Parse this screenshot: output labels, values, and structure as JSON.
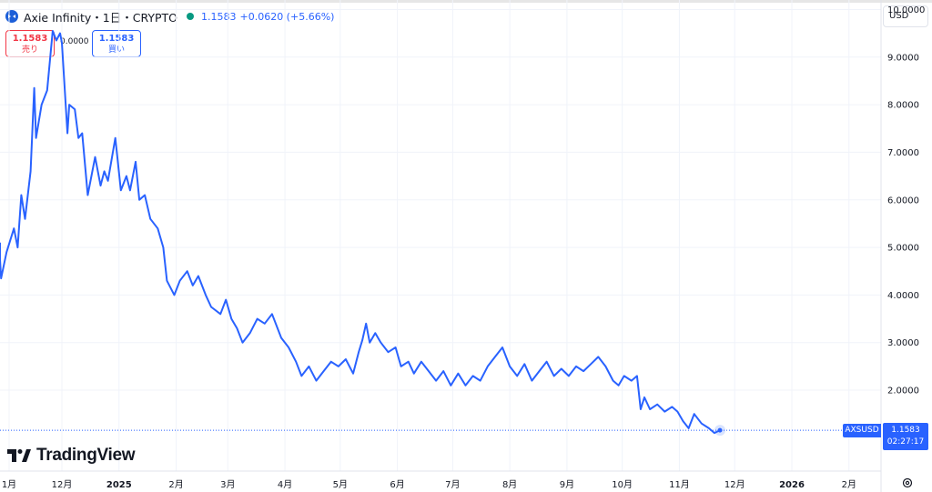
{
  "header": {
    "title": "Axie Infinity・1日・CRYPTO",
    "price": "1.1583",
    "change": "+0.0620 (+5.66%)",
    "logo_icon": "axie-infinity-icon"
  },
  "currency_selector": {
    "label": "USD"
  },
  "trade": {
    "sell_value": "1.1583",
    "sell_label": "売り",
    "spread": "0.0000",
    "buy_value": "1.1583",
    "buy_label": "買い"
  },
  "watermark": {
    "text": "TradingView"
  },
  "last_price": {
    "pair": "AXSUSD",
    "value": "1.1583",
    "countdown": "02:27:17"
  },
  "colors": {
    "line": "#2962ff",
    "sell": "#f23645",
    "buy": "#2962ff",
    "status": "#089981"
  },
  "chart_data": {
    "type": "line",
    "title": "",
    "xlabel": "",
    "ylabel": "",
    "ylim": [
      0.3,
      10.2
    ],
    "y_ticks": [
      "2.0000",
      "3.0000",
      "4.0000",
      "5.0000",
      "6.0000",
      "7.0000",
      "8.0000",
      "9.0000",
      "10.0000"
    ],
    "x_ticks": [
      {
        "label": "1月",
        "date": "2024-01-01"
      },
      {
        "label": "12月",
        "date": "2024-12-01"
      },
      {
        "label": "2025",
        "date": "2025-01-01"
      },
      {
        "label": "2月",
        "date": "2025-02-01"
      },
      {
        "label": "3月",
        "date": "2025-03-01"
      },
      {
        "label": "4月",
        "date": "2025-04-01"
      },
      {
        "label": "5月",
        "date": "2025-05-01"
      },
      {
        "label": "6月",
        "date": "2025-06-01"
      },
      {
        "label": "7月",
        "date": "2025-07-01"
      },
      {
        "label": "8月",
        "date": "2025-08-01"
      },
      {
        "label": "9月",
        "date": "2025-09-01"
      },
      {
        "label": "10月",
        "date": "2025-10-01"
      },
      {
        "label": "11月",
        "date": "2025-11-01"
      },
      {
        "label": "12月",
        "date": "2025-12-01"
      },
      {
        "label": "2026",
        "date": "2026-01-01"
      },
      {
        "label": "2月",
        "date": "2026-02-01"
      }
    ],
    "grid": true,
    "series": [
      {
        "values": [
          [
            "2024-10-23",
            5.1
          ],
          [
            "2024-10-25",
            4.75
          ],
          [
            "2024-10-29",
            4.35
          ],
          [
            "2024-11-01",
            4.9
          ],
          [
            "2024-11-05",
            5.4
          ],
          [
            "2024-11-07",
            5.0
          ],
          [
            "2024-11-09",
            6.1
          ],
          [
            "2024-11-11",
            5.6
          ],
          [
            "2024-11-14",
            6.6
          ],
          [
            "2024-11-16",
            8.35
          ],
          [
            "2024-11-17",
            7.3
          ],
          [
            "2024-11-20",
            8.0
          ],
          [
            "2024-11-23",
            8.3
          ],
          [
            "2024-11-26",
            9.55
          ],
          [
            "2024-11-28",
            9.35
          ],
          [
            "2024-11-30",
            9.5
          ],
          [
            "2024-12-01",
            9.3
          ],
          [
            "2024-12-04",
            7.4
          ],
          [
            "2024-12-05",
            8.0
          ],
          [
            "2024-12-08",
            7.9
          ],
          [
            "2024-12-10",
            7.3
          ],
          [
            "2024-12-12",
            7.4
          ],
          [
            "2024-12-15",
            6.1
          ],
          [
            "2024-12-19",
            6.9
          ],
          [
            "2024-12-22",
            6.3
          ],
          [
            "2024-12-24",
            6.6
          ],
          [
            "2024-12-26",
            6.4
          ],
          [
            "2024-12-30",
            7.3
          ],
          [
            "2025-01-02",
            6.2
          ],
          [
            "2025-01-05",
            6.5
          ],
          [
            "2025-01-07",
            6.2
          ],
          [
            "2025-01-10",
            6.8
          ],
          [
            "2025-01-12",
            6.0
          ],
          [
            "2025-01-15",
            6.1
          ],
          [
            "2025-01-18",
            5.6
          ],
          [
            "2025-01-22",
            5.4
          ],
          [
            "2025-01-25",
            5.0
          ],
          [
            "2025-01-27",
            4.3
          ],
          [
            "2025-01-31",
            4.0
          ],
          [
            "2025-02-03",
            4.3
          ],
          [
            "2025-02-07",
            4.5
          ],
          [
            "2025-02-10",
            4.2
          ],
          [
            "2025-02-13",
            4.4
          ],
          [
            "2025-02-17",
            4.0
          ],
          [
            "2025-02-20",
            3.75
          ],
          [
            "2025-02-25",
            3.6
          ],
          [
            "2025-02-28",
            3.9
          ],
          [
            "2025-03-03",
            3.5
          ],
          [
            "2025-03-06",
            3.3
          ],
          [
            "2025-03-09",
            3.0
          ],
          [
            "2025-03-13",
            3.2
          ],
          [
            "2025-03-17",
            3.5
          ],
          [
            "2025-03-21",
            3.4
          ],
          [
            "2025-03-25",
            3.6
          ],
          [
            "2025-03-30",
            3.1
          ],
          [
            "2025-04-03",
            2.9
          ],
          [
            "2025-04-07",
            2.6
          ],
          [
            "2025-04-10",
            2.3
          ],
          [
            "2025-04-14",
            2.5
          ],
          [
            "2025-04-18",
            2.2
          ],
          [
            "2025-04-22",
            2.4
          ],
          [
            "2025-04-26",
            2.6
          ],
          [
            "2025-04-30",
            2.5
          ],
          [
            "2025-05-04",
            2.65
          ],
          [
            "2025-05-08",
            2.35
          ],
          [
            "2025-05-11",
            2.8
          ],
          [
            "2025-05-13",
            3.05
          ],
          [
            "2025-05-15",
            3.4
          ],
          [
            "2025-05-17",
            3.0
          ],
          [
            "2025-05-20",
            3.2
          ],
          [
            "2025-05-23",
            3.0
          ],
          [
            "2025-05-27",
            2.8
          ],
          [
            "2025-05-31",
            2.9
          ],
          [
            "2025-06-03",
            2.5
          ],
          [
            "2025-06-07",
            2.6
          ],
          [
            "2025-06-10",
            2.35
          ],
          [
            "2025-06-14",
            2.6
          ],
          [
            "2025-06-18",
            2.4
          ],
          [
            "2025-06-22",
            2.2
          ],
          [
            "2025-06-26",
            2.4
          ],
          [
            "2025-06-30",
            2.1
          ],
          [
            "2025-07-04",
            2.35
          ],
          [
            "2025-07-08",
            2.1
          ],
          [
            "2025-07-12",
            2.3
          ],
          [
            "2025-07-16",
            2.2
          ],
          [
            "2025-07-20",
            2.5
          ],
          [
            "2025-07-24",
            2.7
          ],
          [
            "2025-07-28",
            2.9
          ],
          [
            "2025-08-01",
            2.5
          ],
          [
            "2025-08-05",
            2.3
          ],
          [
            "2025-08-09",
            2.55
          ],
          [
            "2025-08-13",
            2.2
          ],
          [
            "2025-08-17",
            2.4
          ],
          [
            "2025-08-21",
            2.6
          ],
          [
            "2025-08-25",
            2.3
          ],
          [
            "2025-08-29",
            2.45
          ],
          [
            "2025-09-02",
            2.3
          ],
          [
            "2025-09-06",
            2.5
          ],
          [
            "2025-09-10",
            2.4
          ],
          [
            "2025-09-14",
            2.55
          ],
          [
            "2025-09-18",
            2.7
          ],
          [
            "2025-09-22",
            2.5
          ],
          [
            "2025-09-26",
            2.2
          ],
          [
            "2025-09-29",
            2.1
          ],
          [
            "2025-10-02",
            2.3
          ],
          [
            "2025-10-06",
            2.2
          ],
          [
            "2025-10-09",
            2.3
          ],
          [
            "2025-10-11",
            1.6
          ],
          [
            "2025-10-13",
            1.85
          ],
          [
            "2025-10-16",
            1.6
          ],
          [
            "2025-10-20",
            1.7
          ],
          [
            "2025-10-24",
            1.55
          ],
          [
            "2025-10-28",
            1.65
          ],
          [
            "2025-10-31",
            1.55
          ],
          [
            "2025-11-03",
            1.35
          ],
          [
            "2025-11-06",
            1.2
          ],
          [
            "2025-11-09",
            1.5
          ],
          [
            "2025-11-13",
            1.3
          ],
          [
            "2025-11-17",
            1.2
          ],
          [
            "2025-11-20",
            1.1
          ],
          [
            "2025-11-23",
            1.1583
          ]
        ]
      }
    ],
    "last_value": 1.1583
  }
}
